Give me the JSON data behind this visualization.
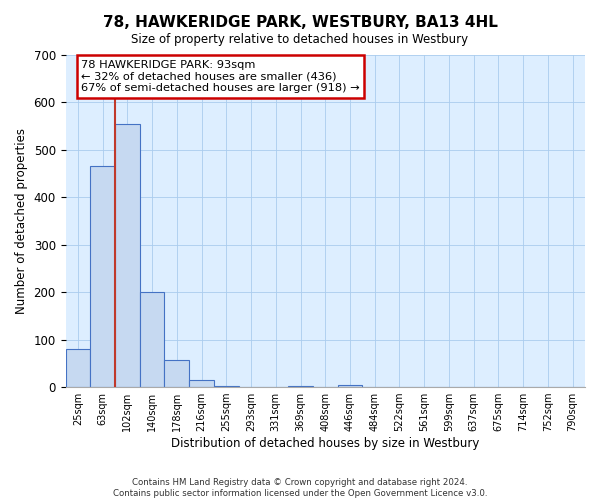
{
  "title": "78, HAWKERIDGE PARK, WESTBURY, BA13 4HL",
  "subtitle": "Size of property relative to detached houses in Westbury",
  "xlabel": "Distribution of detached houses by size in Westbury",
  "ylabel": "Number of detached properties",
  "bar_labels": [
    "25sqm",
    "63sqm",
    "102sqm",
    "140sqm",
    "178sqm",
    "216sqm",
    "255sqm",
    "293sqm",
    "331sqm",
    "369sqm",
    "408sqm",
    "446sqm",
    "484sqm",
    "522sqm",
    "561sqm",
    "599sqm",
    "637sqm",
    "675sqm",
    "714sqm",
    "752sqm",
    "790sqm"
  ],
  "bar_heights": [
    80,
    465,
    555,
    200,
    58,
    15,
    3,
    0,
    0,
    3,
    0,
    5,
    0,
    0,
    0,
    0,
    0,
    0,
    0,
    0,
    0
  ],
  "bar_color": "#c6d9f1",
  "bar_edge_color": "#4472c4",
  "vline_x_idx": 2,
  "vline_color": "#c0392b",
  "ylim": [
    0,
    700
  ],
  "yticks": [
    0,
    100,
    200,
    300,
    400,
    500,
    600,
    700
  ],
  "annotation_line1": "78 HAWKERIDGE PARK: 93sqm",
  "annotation_line2": "← 32% of detached houses are smaller (436)",
  "annotation_line3": "67% of semi-detached houses are larger (918) →",
  "annotation_box_color": "#ffffff",
  "annotation_box_edge": "#cc0000",
  "bg_color": "#ddeeff",
  "footer1": "Contains HM Land Registry data © Crown copyright and database right 2024.",
  "footer2": "Contains public sector information licensed under the Open Government Licence v3.0."
}
